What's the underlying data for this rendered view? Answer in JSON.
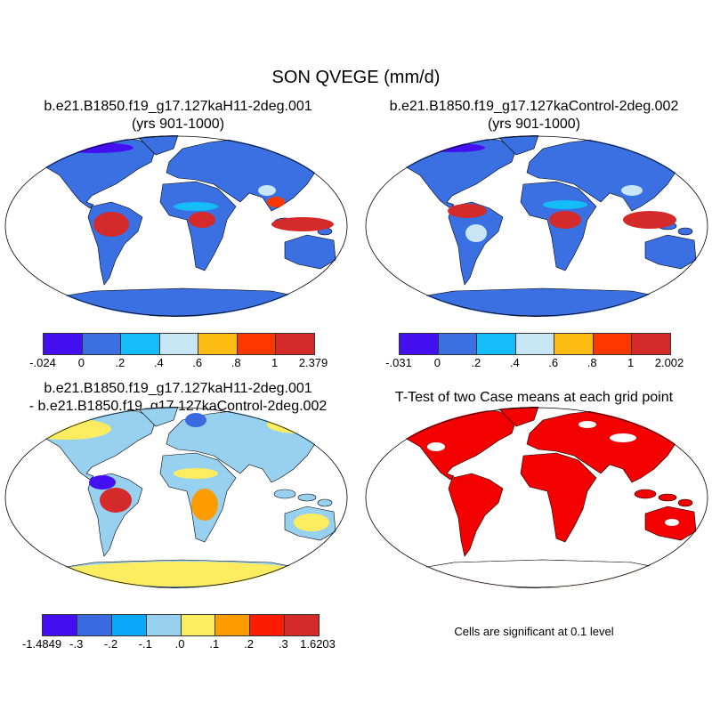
{
  "title": "SON QVEGE (mm/d)",
  "panels": [
    {
      "title1": "b.e21.B1850.f19_g17.127kaH11-2deg.001",
      "title2": "(yrs 901-1000)"
    },
    {
      "title1": "b.e21.B1850.f19_g17.127kaControl-2deg.002",
      "title2": "(yrs 901-1000)"
    },
    {
      "title1": "b.e21.B1850.f19_g17.127kaH11-2deg.001",
      "title2": "- b.e21.B1850.f19_g17.127kaControl-2deg.002"
    },
    {
      "title1": "T-Test of two Case means at each grid point"
    }
  ],
  "colorbars": [
    {
      "colors": [
        "#4410f2",
        "#3a70e2",
        "#14bcf8",
        "#c8e6f6",
        "#fcbc14",
        "#fc3800",
        "#d42a2a"
      ],
      "labels": [
        "-.024",
        "0",
        ".2",
        ".4",
        ".6",
        ".8",
        "1",
        "2.379"
      ]
    },
    {
      "colors": [
        "#4410f2",
        "#3a70e2",
        "#14bcf8",
        "#c8e6f6",
        "#fcbc14",
        "#fc3800",
        "#d42a2a"
      ],
      "labels": [
        "-.031",
        "0",
        ".2",
        ".4",
        ".6",
        ".8",
        "1",
        "2.002"
      ]
    },
    {
      "colors": [
        "#4410f2",
        "#3a6ae0",
        "#0aa8f8",
        "#98d0f0",
        "#fcec60",
        "#fc9c00",
        "#fc1c00",
        "#d42a2a"
      ],
      "labels": [
        "-1.4849",
        "-.3",
        "-.2",
        "-.1",
        ".0",
        ".1",
        ".2",
        ".3",
        "1.6203"
      ]
    }
  ],
  "significance_note": "Cells are significant at 0.1 level"
}
